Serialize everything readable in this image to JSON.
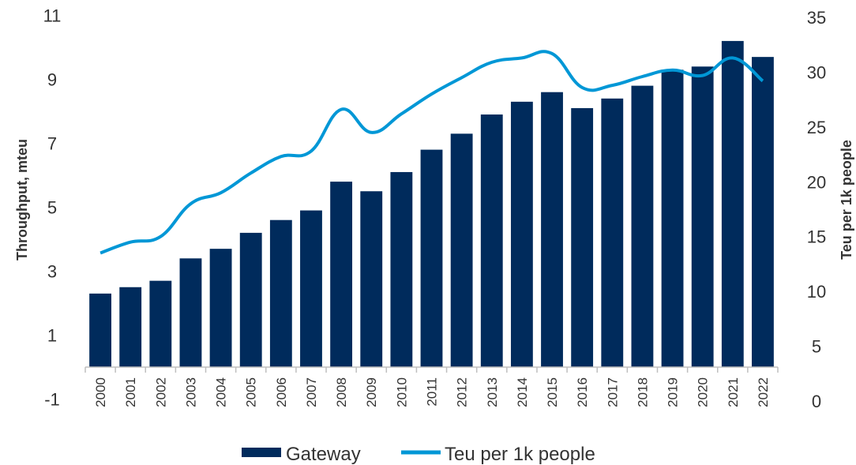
{
  "chart_data": {
    "type": "bar",
    "categories": [
      "2000",
      "2001",
      "2002",
      "2003",
      "2004",
      "2005",
      "2006",
      "2007",
      "2008",
      "2009",
      "2010",
      "2011",
      "2012",
      "2013",
      "2014",
      "2015",
      "2016",
      "2017",
      "2018",
      "2019",
      "2020",
      "2021",
      "2022"
    ],
    "series": [
      {
        "name": "Gateway",
        "type": "bar",
        "axis": "left",
        "color": "#002B5C",
        "values": [
          2.3,
          2.5,
          2.7,
          3.4,
          3.7,
          4.2,
          4.6,
          4.9,
          5.8,
          5.5,
          6.1,
          6.8,
          7.3,
          7.9,
          8.3,
          8.6,
          8.1,
          8.4,
          8.8,
          9.3,
          9.4,
          10.2,
          9.7
        ]
      },
      {
        "name": "Teu per 1k people",
        "type": "line",
        "axis": "right",
        "color": "#0097D6",
        "values": [
          13.5,
          14.5,
          15.0,
          18.0,
          19.0,
          20.8,
          22.3,
          22.8,
          26.6,
          24.5,
          26.2,
          28.0,
          29.5,
          30.9,
          31.3,
          31.7,
          28.6,
          28.8,
          29.6,
          30.2,
          29.7,
          31.3,
          29.2
        ]
      }
    ],
    "y_left": {
      "label": "Throughput, mteu",
      "ylim": [
        -1,
        11
      ],
      "ticks": [
        -1,
        1,
        3,
        5,
        7,
        9,
        11
      ]
    },
    "y_right": {
      "label": "Teu per 1k people",
      "ylim": [
        0,
        35
      ],
      "ticks": [
        0,
        5,
        10,
        15,
        20,
        25,
        30,
        35
      ]
    },
    "xlabel": "",
    "grid": false,
    "legend_position": "bottom"
  }
}
